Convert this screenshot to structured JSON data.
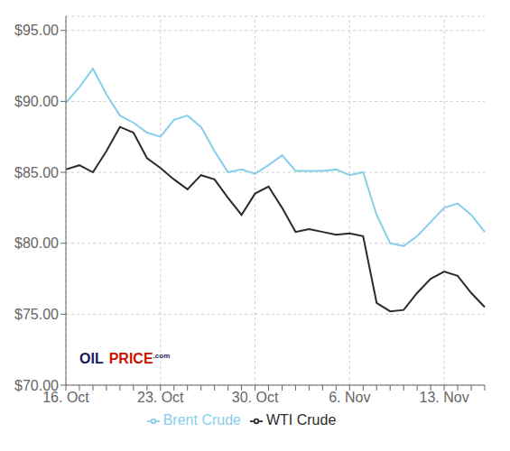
{
  "chart_data": {
    "type": "line",
    "categories": [
      "16. Oct",
      null,
      null,
      null,
      null,
      null,
      null,
      "23. Oct",
      null,
      null,
      null,
      null,
      null,
      null,
      "30. Oct",
      null,
      null,
      null,
      null,
      null,
      null,
      "6. Nov",
      null,
      null,
      null,
      null,
      null,
      null,
      "13. Nov",
      null,
      null,
      null
    ],
    "series": [
      {
        "name": "Brent Crude",
        "color": "#87CEEB",
        "values": [
          89.9,
          91.0,
          92.3,
          90.5,
          89.0,
          88.5,
          87.8,
          87.5,
          88.7,
          89.0,
          88.2,
          86.5,
          85.0,
          85.2,
          84.9,
          85.5,
          86.2,
          85.1,
          85.1,
          85.1,
          85.2,
          84.8,
          85.0,
          82.0,
          80.0,
          79.8,
          80.5,
          81.5,
          82.5,
          82.8,
          82.0,
          80.8
        ]
      },
      {
        "name": "WTI Crude",
        "color": "#2b2b2b",
        "values": [
          85.2,
          85.5,
          85.0,
          86.5,
          88.2,
          87.8,
          86.0,
          85.3,
          84.5,
          83.8,
          84.8,
          84.5,
          83.2,
          82.0,
          83.5,
          84.0,
          82.5,
          80.8,
          81.0,
          80.8,
          80.6,
          80.7,
          80.5,
          75.8,
          75.2,
          75.3,
          76.5,
          77.5,
          78.0,
          77.7,
          76.5,
          75.5
        ]
      }
    ],
    "ylim": [
      70,
      96
    ],
    "yticks": [
      {
        "value": 70,
        "label": "$70.00"
      },
      {
        "value": 75,
        "label": "$75.00"
      },
      {
        "value": 80,
        "label": "$80.00"
      },
      {
        "value": 85,
        "label": "$85.00"
      },
      {
        "value": 90,
        "label": "$90.00"
      },
      {
        "value": 95,
        "label": "$95.00"
      }
    ],
    "grid": true,
    "legend": "bottom",
    "annotations": [
      {
        "text": "OIL",
        "color": "#1a1a5e"
      },
      {
        "text": "PRICE",
        "color": "#cc1100"
      },
      {
        "text": ".com",
        "color": "#1a1a5e"
      }
    ]
  }
}
